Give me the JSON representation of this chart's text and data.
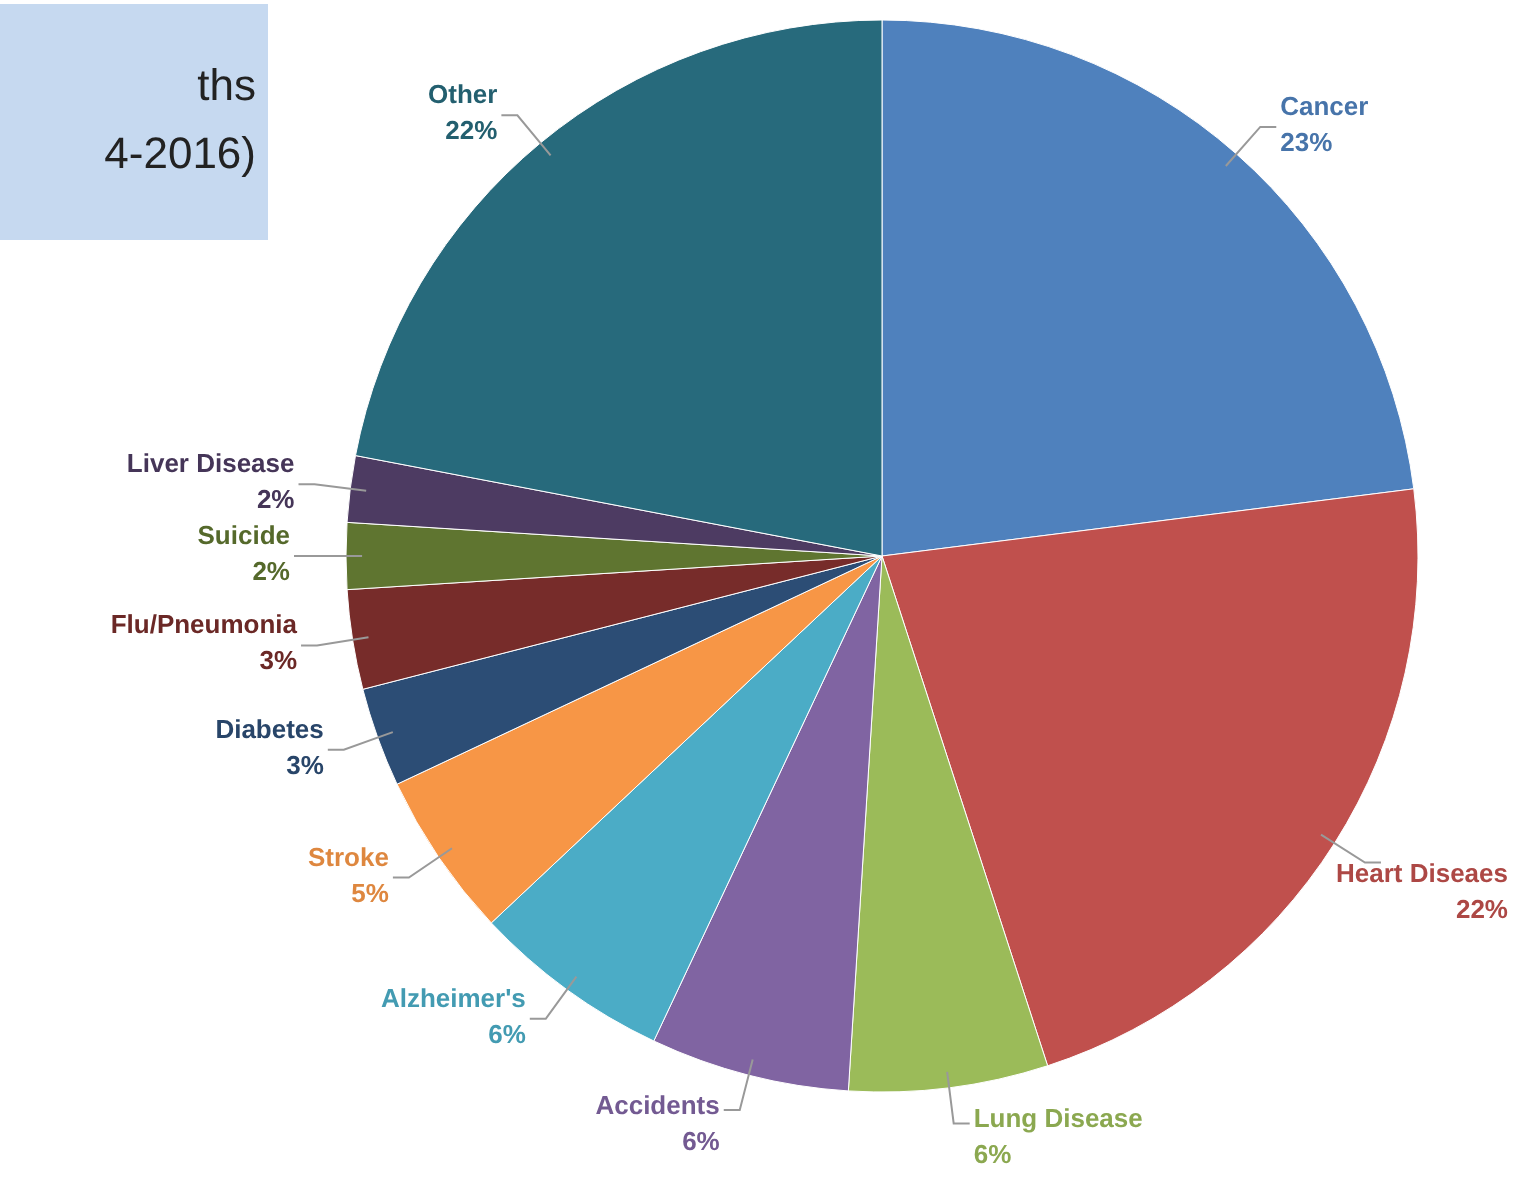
{
  "chart_data": {
    "type": "pie",
    "title": "ths\n4-2016)",
    "categories": [
      "Cancer",
      "Heart Diseaes",
      "Lung Disease",
      "Accidents",
      "Alzheimer's",
      "Stroke",
      "Diabetes",
      "Flu/Pneumonia",
      "Suicide",
      "Liver Disease",
      "Other"
    ],
    "values": [
      23,
      22,
      6,
      6,
      6,
      5,
      3,
      3,
      2,
      2,
      22
    ],
    "value_labels": [
      "23%",
      "22%",
      "6%",
      "6%",
      "6%",
      "5%",
      "3%",
      "3%",
      "2%",
      "2%",
      "22%"
    ],
    "colors": [
      "#4f81bd",
      "#c0504d",
      "#9bbb59",
      "#8064a2",
      "#4bacc6",
      "#f79646",
      "#2c4d75",
      "#772c2a",
      "#5f7530",
      "#4d3b62",
      "#276a7c"
    ]
  }
}
